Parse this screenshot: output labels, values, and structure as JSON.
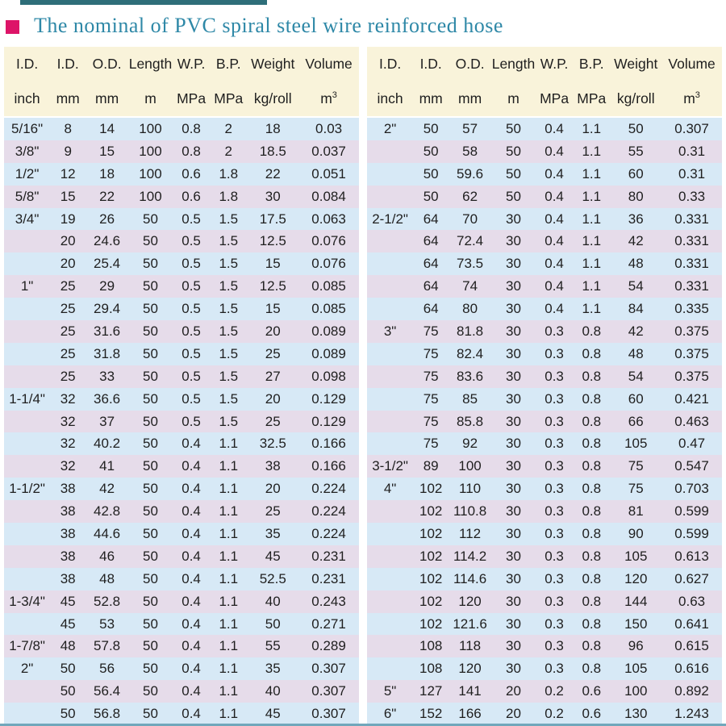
{
  "title": {
    "text": "The nominal of PVC spiral steel wire reinforced hose"
  },
  "colors": {
    "title_text": "#2e88a7",
    "title_bullet": "#dd1468",
    "top_accent_bar": "#2e6e79",
    "header_background": "#f9f3da",
    "row_blue": "#d7e9f6",
    "row_lavender": "#e6dcea",
    "bottom_rule": "#71a7bb",
    "table_text": "#1f1f1f"
  },
  "table_columns": [
    {
      "label": "I.D.",
      "unit": "inch"
    },
    {
      "label": "I.D.",
      "unit": "mm"
    },
    {
      "label": "O.D.",
      "unit": "mm"
    },
    {
      "label": "Length",
      "unit": "m"
    },
    {
      "label": "W.P.",
      "unit": "MPa"
    },
    {
      "label": "B.P.",
      "unit": "MPa"
    },
    {
      "label": "Weight",
      "unit": "kg/roll"
    },
    {
      "label": "Volume",
      "unit": "m",
      "unit_sup": "3"
    }
  ],
  "tables": [
    {
      "rows": [
        [
          "5/16\"",
          "8",
          "14",
          "100",
          "0.8",
          "2",
          "18",
          "0.03"
        ],
        [
          "3/8\"",
          "9",
          "15",
          "100",
          "0.8",
          "2",
          "18.5",
          "0.037"
        ],
        [
          "1/2\"",
          "12",
          "18",
          "100",
          "0.6",
          "1.8",
          "22",
          "0.051"
        ],
        [
          "5/8\"",
          "15",
          "22",
          "100",
          "0.6",
          "1.8",
          "30",
          "0.084"
        ],
        [
          "3/4\"",
          "19",
          "26",
          "50",
          "0.5",
          "1.5",
          "17.5",
          "0.063"
        ],
        [
          "",
          "20",
          "24.6",
          "50",
          "0.5",
          "1.5",
          "12.5",
          "0.076"
        ],
        [
          "",
          "20",
          "25.4",
          "50",
          "0.5",
          "1.5",
          "15",
          "0.076"
        ],
        [
          "1\"",
          "25",
          "29",
          "50",
          "0.5",
          "1.5",
          "12.5",
          "0.085"
        ],
        [
          "",
          "25",
          "29.4",
          "50",
          "0.5",
          "1.5",
          "15",
          "0.085"
        ],
        [
          "",
          "25",
          "31.6",
          "50",
          "0.5",
          "1.5",
          "20",
          "0.089"
        ],
        [
          "",
          "25",
          "31.8",
          "50",
          "0.5",
          "1.5",
          "25",
          "0.089"
        ],
        [
          "",
          "25",
          "33",
          "50",
          "0.5",
          "1.5",
          "27",
          "0.098"
        ],
        [
          "1-1/4\"",
          "32",
          "36.6",
          "50",
          "0.5",
          "1.5",
          "20",
          "0.129"
        ],
        [
          "",
          "32",
          "37",
          "50",
          "0.5",
          "1.5",
          "25",
          "0.129"
        ],
        [
          "",
          "32",
          "40.2",
          "50",
          "0.4",
          "1.1",
          "32.5",
          "0.166"
        ],
        [
          "",
          "32",
          "41",
          "50",
          "0.4",
          "1.1",
          "38",
          "0.166"
        ],
        [
          "1-1/2\"",
          "38",
          "42",
          "50",
          "0.4",
          "1.1",
          "20",
          "0.224"
        ],
        [
          "",
          "38",
          "42.8",
          "50",
          "0.4",
          "1.1",
          "25",
          "0.224"
        ],
        [
          "",
          "38",
          "44.6",
          "50",
          "0.4",
          "1.1",
          "35",
          "0.224"
        ],
        [
          "",
          "38",
          "46",
          "50",
          "0.4",
          "1.1",
          "45",
          "0.231"
        ],
        [
          "",
          "38",
          "48",
          "50",
          "0.4",
          "1.1",
          "52.5",
          "0.231"
        ],
        [
          "1-3/4\"",
          "45",
          "52.8",
          "50",
          "0.4",
          "1.1",
          "40",
          "0.243"
        ],
        [
          "",
          "45",
          "53",
          "50",
          "0.4",
          "1.1",
          "50",
          "0.271"
        ],
        [
          "1-7/8\"",
          "48",
          "57.8",
          "50",
          "0.4",
          "1.1",
          "55",
          "0.289"
        ],
        [
          "2\"",
          "50",
          "56",
          "50",
          "0.4",
          "1.1",
          "35",
          "0.307"
        ],
        [
          "",
          "50",
          "56.4",
          "50",
          "0.4",
          "1.1",
          "40",
          "0.307"
        ],
        [
          "",
          "50",
          "56.8",
          "50",
          "0.4",
          "1.1",
          "45",
          "0.307"
        ]
      ]
    },
    {
      "rows": [
        [
          "2\"",
          "50",
          "57",
          "50",
          "0.4",
          "1.1",
          "50",
          "0.307"
        ],
        [
          "",
          "50",
          "58",
          "50",
          "0.4",
          "1.1",
          "55",
          "0.31"
        ],
        [
          "",
          "50",
          "59.6",
          "50",
          "0.4",
          "1.1",
          "60",
          "0.31"
        ],
        [
          "",
          "50",
          "62",
          "50",
          "0.4",
          "1.1",
          "80",
          "0.33"
        ],
        [
          "2-1/2\"",
          "64",
          "70",
          "30",
          "0.4",
          "1.1",
          "36",
          "0.331"
        ],
        [
          "",
          "64",
          "72.4",
          "30",
          "0.4",
          "1.1",
          "42",
          "0.331"
        ],
        [
          "",
          "64",
          "73.5",
          "30",
          "0.4",
          "1.1",
          "48",
          "0.331"
        ],
        [
          "",
          "64",
          "74",
          "30",
          "0.4",
          "1.1",
          "54",
          "0.331"
        ],
        [
          "",
          "64",
          "80",
          "30",
          "0.4",
          "1.1",
          "84",
          "0.335"
        ],
        [
          "3\"",
          "75",
          "81.8",
          "30",
          "0.3",
          "0.8",
          "42",
          "0.375"
        ],
        [
          "",
          "75",
          "82.4",
          "30",
          "0.3",
          "0.8",
          "48",
          "0.375"
        ],
        [
          "",
          "75",
          "83.6",
          "30",
          "0.3",
          "0.8",
          "54",
          "0.375"
        ],
        [
          "",
          "75",
          "85",
          "30",
          "0.3",
          "0.8",
          "60",
          "0.421"
        ],
        [
          "",
          "75",
          "85.8",
          "30",
          "0.3",
          "0.8",
          "66",
          "0.463"
        ],
        [
          "",
          "75",
          "92",
          "30",
          "0.3",
          "0.8",
          "105",
          "0.47"
        ],
        [
          "3-1/2\"",
          "89",
          "100",
          "30",
          "0.3",
          "0.8",
          "75",
          "0.547"
        ],
        [
          "4\"",
          "102",
          "110",
          "30",
          "0.3",
          "0.8",
          "75",
          "0.703"
        ],
        [
          "",
          "102",
          "110.8",
          "30",
          "0.3",
          "0.8",
          "81",
          "0.599"
        ],
        [
          "",
          "102",
          "112",
          "30",
          "0.3",
          "0.8",
          "90",
          "0.599"
        ],
        [
          "",
          "102",
          "114.2",
          "30",
          "0.3",
          "0.8",
          "105",
          "0.613"
        ],
        [
          "",
          "102",
          "114.6",
          "30",
          "0.3",
          "0.8",
          "120",
          "0.627"
        ],
        [
          "",
          "102",
          "120",
          "30",
          "0.3",
          "0.8",
          "144",
          "0.63"
        ],
        [
          "",
          "102",
          "121.6",
          "30",
          "0.3",
          "0.8",
          "150",
          "0.641"
        ],
        [
          "",
          "108",
          "118",
          "30",
          "0.3",
          "0.8",
          "96",
          "0.615"
        ],
        [
          "",
          "108",
          "120",
          "30",
          "0.3",
          "0.8",
          "105",
          "0.616"
        ],
        [
          "5\"",
          "127",
          "141",
          "20",
          "0.2",
          "0.6",
          "100",
          "0.892"
        ],
        [
          "6\"",
          "152",
          "166",
          "20",
          "0.2",
          "0.6",
          "130",
          "1.243"
        ]
      ]
    }
  ]
}
